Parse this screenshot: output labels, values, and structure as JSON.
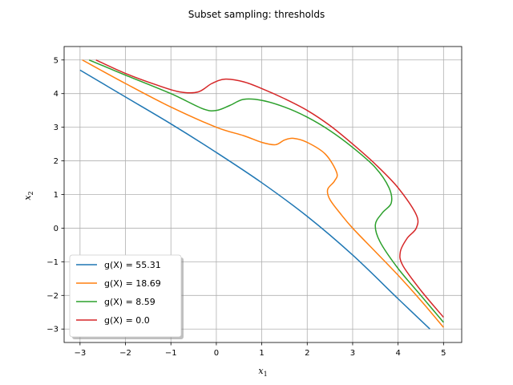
{
  "chart_data": {
    "type": "line",
    "title": "Subset sampling: thresholds",
    "xlabel": "x1",
    "ylabel": "x2",
    "xlim": [
      -3.35,
      5.4
    ],
    "ylim": [
      -3.4,
      5.4
    ],
    "xticks": [
      -3,
      -2,
      -1,
      0,
      1,
      2,
      3,
      4,
      5
    ],
    "yticks": [
      -3,
      -2,
      -1,
      0,
      1,
      2,
      3,
      4,
      5
    ],
    "xtick_labels": [
      "−3",
      "−2",
      "−1",
      "0",
      "1",
      "2",
      "3",
      "4",
      "5"
    ],
    "ytick_labels": [
      "−3",
      "−2",
      "−1",
      "0",
      "1",
      "2",
      "3",
      "4",
      "5"
    ],
    "grid": true,
    "legend_position": "lower-left",
    "series": [
      {
        "name": "g(X) = 55.31",
        "color": "#1f77b4",
        "points": [
          [
            -3.0,
            4.7
          ],
          [
            -2.0,
            3.9
          ],
          [
            -1.0,
            3.1
          ],
          [
            0.0,
            2.25
          ],
          [
            1.0,
            1.35
          ],
          [
            2.0,
            0.35
          ],
          [
            3.0,
            -0.8
          ],
          [
            4.0,
            -2.1
          ],
          [
            4.7,
            -3.0
          ]
        ]
      },
      {
        "name": "g(X) = 18.69",
        "color": "#ff7f0e",
        "points": [
          [
            -2.95,
            5.0
          ],
          [
            -2.0,
            4.3
          ],
          [
            -1.0,
            3.6
          ],
          [
            0.0,
            3.0
          ],
          [
            0.6,
            2.75
          ],
          [
            1.0,
            2.55
          ],
          [
            1.3,
            2.48
          ],
          [
            1.5,
            2.62
          ],
          [
            1.7,
            2.67
          ],
          [
            2.0,
            2.55
          ],
          [
            2.4,
            2.2
          ],
          [
            2.65,
            1.65
          ],
          [
            2.6,
            1.4
          ],
          [
            2.45,
            1.15
          ],
          [
            2.5,
            0.85
          ],
          [
            2.75,
            0.4
          ],
          [
            3.0,
            0.0
          ],
          [
            3.5,
            -0.7
          ],
          [
            4.0,
            -1.4
          ],
          [
            4.5,
            -2.15
          ],
          [
            5.0,
            -2.95
          ]
        ]
      },
      {
        "name": "g(X) = 8.59",
        "color": "#2ca02c",
        "points": [
          [
            -2.8,
            5.0
          ],
          [
            -2.0,
            4.55
          ],
          [
            -1.0,
            4.0
          ],
          [
            -0.3,
            3.55
          ],
          [
            0.0,
            3.5
          ],
          [
            0.3,
            3.65
          ],
          [
            0.6,
            3.83
          ],
          [
            1.0,
            3.8
          ],
          [
            1.5,
            3.6
          ],
          [
            2.0,
            3.3
          ],
          [
            2.5,
            2.9
          ],
          [
            3.0,
            2.4
          ],
          [
            3.5,
            1.8
          ],
          [
            3.8,
            1.2
          ],
          [
            3.85,
            0.75
          ],
          [
            3.65,
            0.45
          ],
          [
            3.5,
            0.1
          ],
          [
            3.6,
            -0.4
          ],
          [
            4.0,
            -1.2
          ],
          [
            4.5,
            -2.0
          ],
          [
            5.0,
            -2.8
          ]
        ]
      },
      {
        "name": "g(X) = 0.0",
        "color": "#d62728",
        "points": [
          [
            -2.65,
            5.0
          ],
          [
            -2.0,
            4.6
          ],
          [
            -1.3,
            4.25
          ],
          [
            -0.8,
            4.05
          ],
          [
            -0.4,
            4.05
          ],
          [
            -0.1,
            4.3
          ],
          [
            0.2,
            4.43
          ],
          [
            0.6,
            4.35
          ],
          [
            1.0,
            4.15
          ],
          [
            1.5,
            3.85
          ],
          [
            2.0,
            3.5
          ],
          [
            2.5,
            3.05
          ],
          [
            3.0,
            2.5
          ],
          [
            3.5,
            1.9
          ],
          [
            4.0,
            1.2
          ],
          [
            4.4,
            0.4
          ],
          [
            4.4,
            0.0
          ],
          [
            4.2,
            -0.3
          ],
          [
            4.05,
            -0.7
          ],
          [
            4.1,
            -1.1
          ],
          [
            4.5,
            -1.85
          ],
          [
            5.0,
            -2.65
          ]
        ]
      }
    ]
  }
}
